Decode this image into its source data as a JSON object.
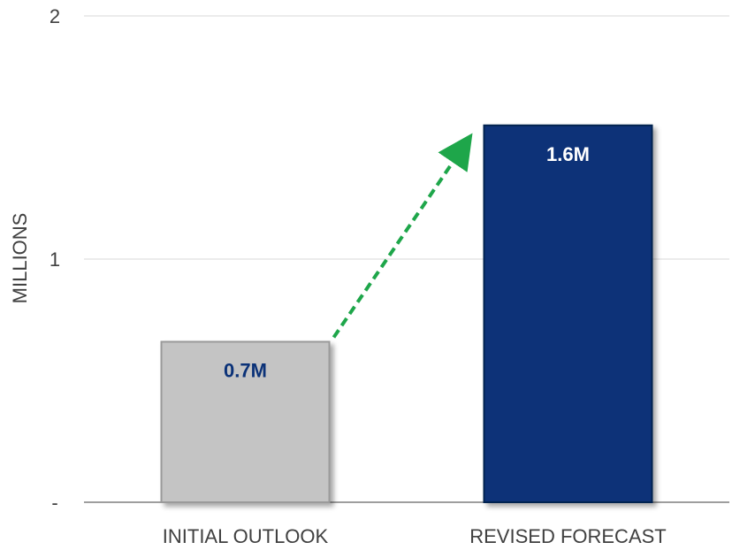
{
  "chart_data": {
    "type": "bar",
    "categories": [
      "INITIAL OUTLOOK",
      "REVISED FORECAST"
    ],
    "values": [
      0.66,
      1.55
    ],
    "data_labels": [
      "0.7M",
      "1.6M"
    ],
    "ylabel": "MILLIONS",
    "ylim": [
      0,
      2
    ],
    "yticks": [
      {
        "value": 0,
        "label": "-"
      },
      {
        "value": 1,
        "label": "1"
      },
      {
        "value": 2,
        "label": "2"
      }
    ],
    "grid": true,
    "bar_colors": [
      "#c4c4c4",
      "#0b3278"
    ],
    "bar_edge_colors": [
      "#9a9a9a",
      "#06204f"
    ],
    "data_label_colors": [
      "#0b3278",
      "#ffffff"
    ],
    "annotation": {
      "type": "dashed-arrow",
      "from_bar": 0,
      "to_bar": 1,
      "color": "#1ea64a"
    }
  }
}
